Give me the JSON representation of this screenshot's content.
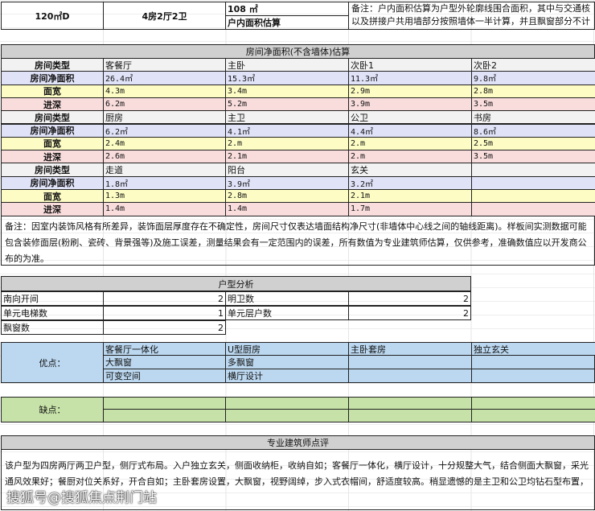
{
  "header": {
    "area": "120㎡D",
    "layout": "4房2厅2卫",
    "inner_area": "108 ㎡",
    "inner_area_label": "户内面积估算",
    "note": "备注：户内面积估算为户型外轮廓线围合面积，其中与交通核以及拼接户共用墙部分按照墙体一半计算，并且飘窗部分不计"
  },
  "rooms": {
    "title": "房间净面积(不含墙体)估算",
    "labels": {
      "type": "房间类型",
      "area": "房间净面积",
      "width": "面宽",
      "depth": "进深"
    },
    "groups": [
      [
        {
          "name": "客餐厅",
          "area": "26.4㎡",
          "width": "4.3m",
          "depth": "6.2m"
        },
        {
          "name": "主卧",
          "area": "15.3㎡",
          "width": "3.4m",
          "depth": "5.2m"
        },
        {
          "name": "次卧1",
          "area": "11.3㎡",
          "width": "2.9m",
          "depth": "3.9m"
        },
        {
          "name": "次卧2",
          "area": "9.8㎡",
          "width": "2.8m",
          "depth": "3.5m"
        }
      ],
      [
        {
          "name": "厨房",
          "area": "6.2㎡",
          "width": "2.4m",
          "depth": "2.6m"
        },
        {
          "name": "主卫",
          "area": "4.1㎡",
          "width": "2.m",
          "depth": "2.1m"
        },
        {
          "name": "公卫",
          "area": "4.4㎡",
          "width": "2.m",
          "depth": "2.m"
        },
        {
          "name": "书房",
          "area": "8.6㎡",
          "width": "2.5m",
          "depth": "3.5m"
        }
      ],
      [
        {
          "name": "走道",
          "area": "1.8㎡",
          "width": "1.3m",
          "depth": "1.4m"
        },
        {
          "name": "阳台",
          "area": "3.9㎡",
          "width": "2.8m",
          "depth": "1.4m"
        },
        {
          "name": "玄关",
          "area": "3.2㎡",
          "width": "2.1m",
          "depth": "1.7m"
        },
        {
          "name": "",
          "area": "",
          "width": "",
          "depth": ""
        }
      ]
    ],
    "note": "备注：因室内装饰风格有所差异，装饰面层厚度存在不确定性，房间尺寸仅表达墙面结构净尺寸(非墙体中心线之间的轴线距离)。样板间实测数据可能包含装修面层(粉刷、瓷砖、背景强等)及施工误差，测量结果会有一定范围内的误差，所有数值为专业建筑师估算，仅供参考，准确数值应以开发商公布的为准。"
  },
  "analysis": {
    "title": "户型分析",
    "items": [
      {
        "label": "南向开间",
        "value": "2"
      },
      {
        "label": "明卫数",
        "value": "2"
      },
      {
        "label": "单元电梯数",
        "value": "1"
      },
      {
        "label": "单元层户数",
        "value": "2"
      },
      {
        "label": "飘窗数",
        "value": "2"
      }
    ]
  },
  "pros": {
    "label": "优点：",
    "items": [
      "客餐厅一体化",
      "U型厨房",
      "主卧套房",
      "独立玄关",
      "大飘窗",
      "多飘窗",
      "可变空间",
      "横厅设计"
    ]
  },
  "cons": {
    "label": "缺点："
  },
  "review": {
    "title": "专业建筑师点评",
    "text": "该户型为四房两厅两卫户型，侧厅式布局。入户独立玄关，侧面收纳柜，收纳自如；客餐厅一体化，横厅设计，十分规整大气，结合侧面大飘窗，采光通风效果好；餐厨对位关系好，开合自如；主卧套房设置，大飘窗，视野阔绰，步入式衣帽间，舒适度较高。稍显遗憾的是主卫和公卫均钻石型布置，"
  },
  "watermark": "搜狐号@搜狐焦点荆门站",
  "colors": {
    "header_gray": "#d0d0d0",
    "area_row": "#e0e2f8",
    "width_row": "#fcfcc4",
    "depth_row": "#f9dcdc",
    "pros": "#bcd8f0",
    "cons": "#c6e2a8"
  }
}
